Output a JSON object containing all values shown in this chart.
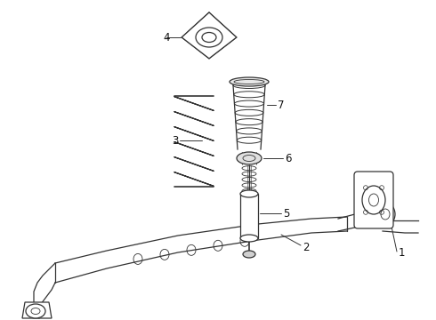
{
  "bg_color": "#ffffff",
  "line_color": "#333333",
  "text_color": "#111111",
  "fig_width": 4.9,
  "fig_height": 3.6,
  "dpi": 100
}
